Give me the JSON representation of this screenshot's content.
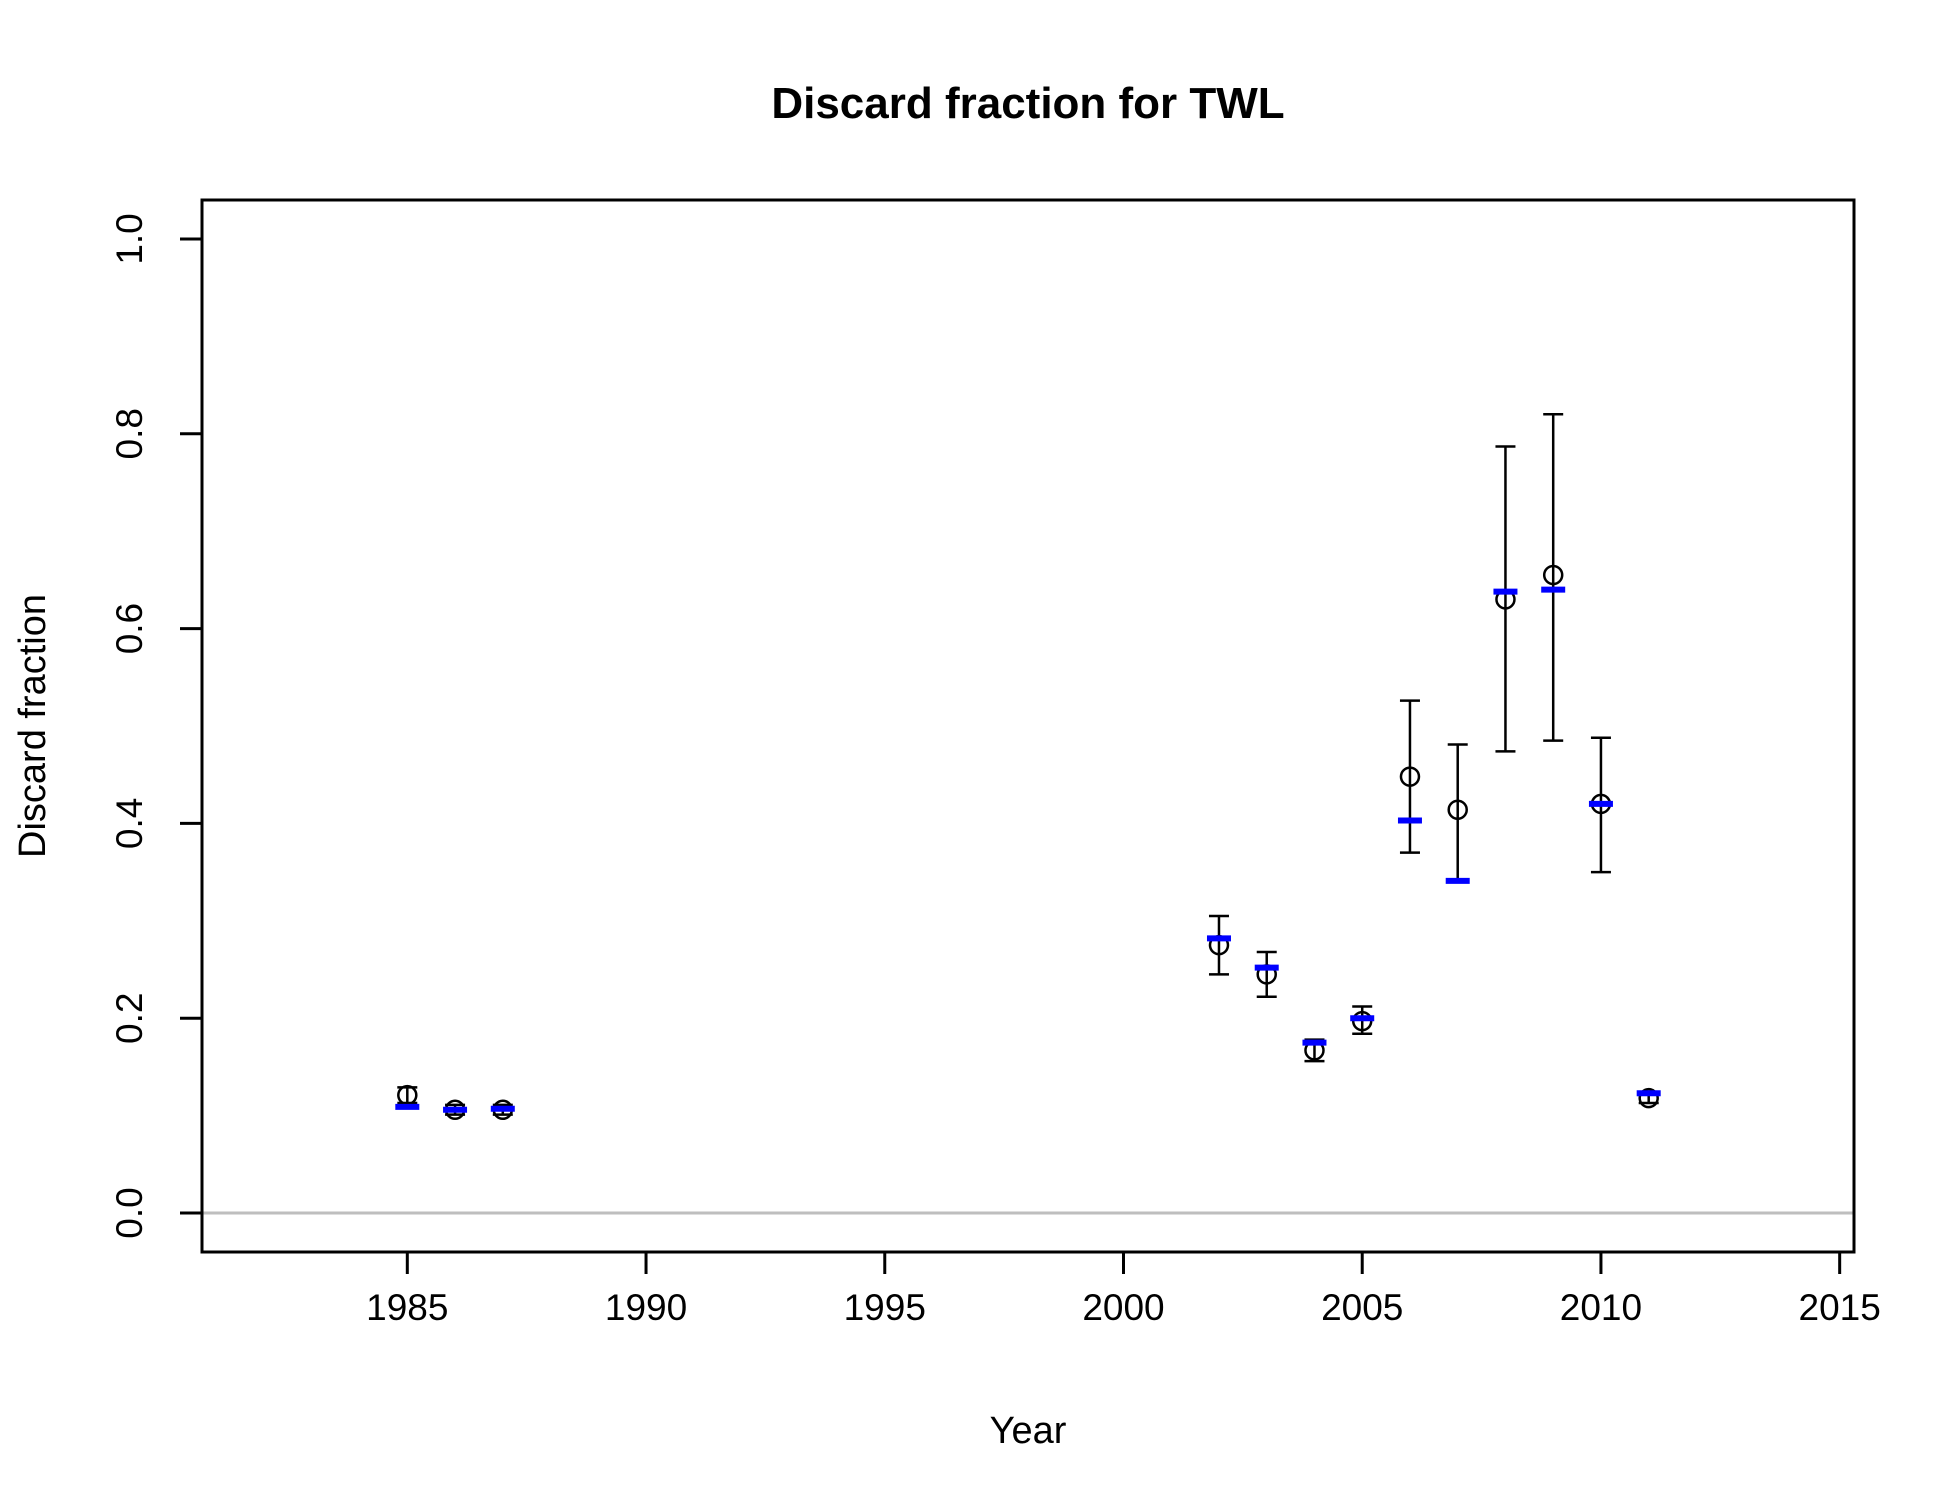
{
  "chart_data": {
    "type": "scatter",
    "title": "Discard fraction for TWL",
    "xlabel": "Year",
    "ylabel": "Discard fraction",
    "xlim": [
      1980.7,
      2015.3
    ],
    "ylim": [
      -0.04,
      1.04
    ],
    "x_ticks": [
      1985,
      1990,
      1995,
      2000,
      2005,
      2010,
      2015
    ],
    "y_ticks": [
      0.0,
      0.2,
      0.4,
      0.6,
      0.8,
      1.0
    ],
    "x_tick_labels": [
      "1985",
      "1990",
      "1995",
      "2000",
      "2005",
      "2010",
      "2015"
    ],
    "y_tick_labels": [
      "0.0",
      "0.2",
      "0.4",
      "0.6",
      "0.8",
      "1.0"
    ],
    "reference_line_y": 0.0,
    "legend": "none",
    "grid": false,
    "colors": {
      "observed": "#000000",
      "expected": "#0000ff",
      "reference": "#bebebe"
    },
    "series": [
      {
        "x": [
          1985,
          1986,
          1987,
          2002,
          2003,
          2004,
          2005,
          2006,
          2007,
          2008,
          2009,
          2010,
          2011
        ],
        "observed": [
          0.121,
          0.106,
          0.106,
          0.275,
          0.245,
          0.167,
          0.197,
          0.448,
          0.414,
          0.63,
          0.655,
          0.42,
          0.118
        ],
        "lower": [
          0.113,
          0.101,
          0.101,
          0.245,
          0.222,
          0.156,
          0.184,
          0.37,
          0.342,
          0.474,
          0.485,
          0.35,
          0.113
        ],
        "upper": [
          0.129,
          0.111,
          0.111,
          0.305,
          0.268,
          0.178,
          0.212,
          0.526,
          0.481,
          0.787,
          0.82,
          0.488,
          0.123
        ]
      },
      {
        "x": [
          1985,
          1986,
          1987,
          2002,
          2003,
          2004,
          2005,
          2006,
          2007,
          2008,
          2009,
          2010,
          2011
        ],
        "expected": [
          0.109,
          0.106,
          0.107,
          0.282,
          0.252,
          0.175,
          0.2,
          0.403,
          0.341,
          0.638,
          0.64,
          0.42,
          0.123
        ]
      }
    ]
  }
}
